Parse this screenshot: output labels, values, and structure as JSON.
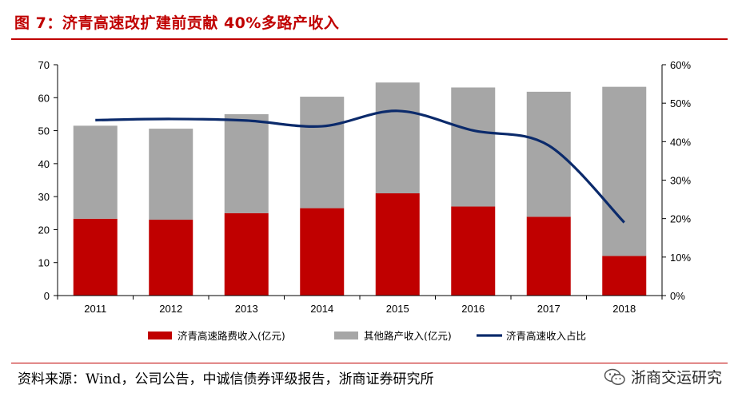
{
  "header": {
    "title": "图 7：济青高速改扩建前贡献 40%多路产收入"
  },
  "chart_data": {
    "type": "bar",
    "stacked": true,
    "categories": [
      "2011",
      "2012",
      "2013",
      "2014",
      "2015",
      "2016",
      "2017",
      "2018"
    ],
    "series": [
      {
        "name": "济青高速路费收入(亿元)",
        "kind": "bar",
        "axis": "left",
        "color": "#c00000",
        "values": [
          23.3,
          23.0,
          25.0,
          26.5,
          31.0,
          27.0,
          23.9,
          12.0
        ]
      },
      {
        "name": "其他路产收入(亿元)",
        "kind": "bar",
        "axis": "left",
        "color": "#a6a6a6",
        "values": [
          28.2,
          27.6,
          30.0,
          33.8,
          33.6,
          36.1,
          37.9,
          51.3
        ]
      },
      {
        "name": "济青高速收入占比",
        "kind": "line",
        "axis": "right",
        "color": "#0b2a6b",
        "values": [
          45.6,
          45.9,
          45.5,
          44.0,
          48.0,
          42.9,
          39.0,
          19.0
        ]
      }
    ],
    "ylim": [
      0,
      70
    ],
    "yticks": [
      "0",
      "10",
      "20",
      "30",
      "40",
      "50",
      "60",
      "70"
    ],
    "y2lim": [
      0,
      60
    ],
    "y2ticks": [
      "0%",
      "10%",
      "20%",
      "30%",
      "40%",
      "50%",
      "60%"
    ],
    "legend_position": "bottom",
    "grid": false
  },
  "footer": {
    "source": "资料来源：Wind，公司公告，中诚信债券评级报告，浙商证券研究所",
    "brand": "浙商交运研究"
  }
}
